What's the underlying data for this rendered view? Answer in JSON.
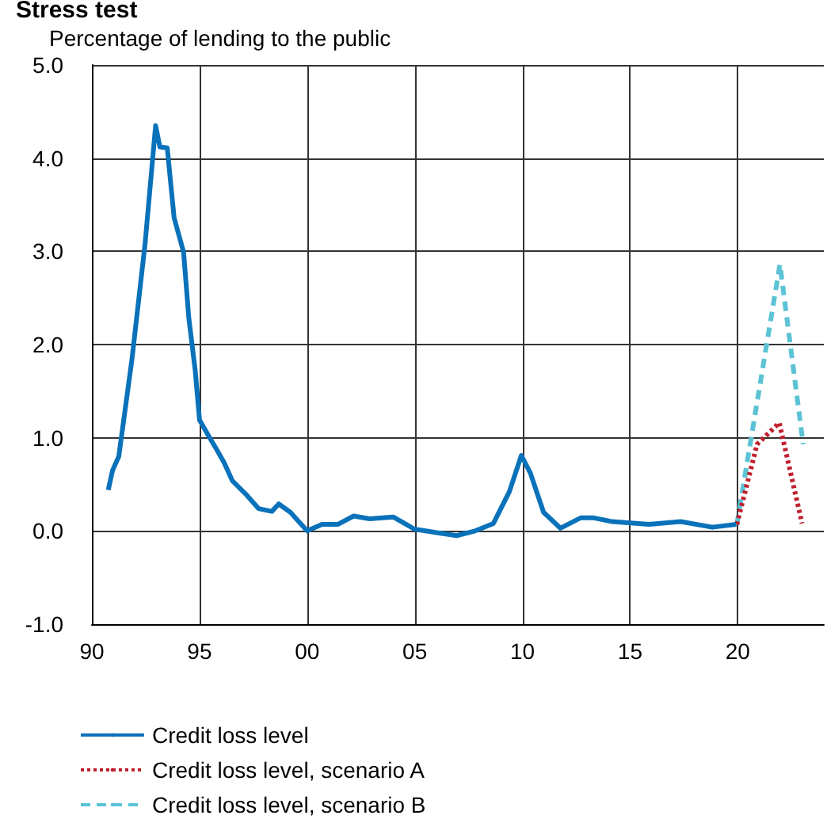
{
  "chart_data": {
    "type": "line",
    "title": "Stress test",
    "subtitle": "Percentage of lending to the public",
    "xlim": [
      1990,
      2024
    ],
    "xticks": [
      {
        "value": 1990,
        "label": "90"
      },
      {
        "value": 1995,
        "label": "95"
      },
      {
        "value": 2000,
        "label": "00"
      },
      {
        "value": 2005,
        "label": "05"
      },
      {
        "value": 2010,
        "label": "10"
      },
      {
        "value": 2015,
        "label": "15"
      },
      {
        "value": 2020,
        "label": "20"
      }
    ],
    "ylim": [
      -1,
      5
    ],
    "yticks": [
      {
        "value": -1,
        "label": "-1.0"
      },
      {
        "value": 0,
        "label": "0.0"
      },
      {
        "value": 1,
        "label": "1.0"
      },
      {
        "value": 2,
        "label": "2.0"
      },
      {
        "value": 3,
        "label": "3.0"
      },
      {
        "value": 4,
        "label": "4.0"
      },
      {
        "value": 5,
        "label": "5.0"
      }
    ],
    "grid": true,
    "legend": "bottom",
    "marker": "none",
    "series": [
      {
        "name": "Credit loss level",
        "color": "#0a72ba",
        "line_style": "solid",
        "x": [
          1990.76,
          1990.96,
          1991.25,
          1991.86,
          1992.47,
          1992.96,
          1993.16,
          1993.5,
          1993.82,
          1994.26,
          1994.5,
          1994.8,
          1995.0,
          1995.42,
          1995.78,
          1996.15,
          1996.52,
          1997.13,
          1997.74,
          1998.36,
          1998.68,
          1999.22,
          2000.0,
          2000.69,
          2001.42,
          2002.16,
          2002.9,
          2004.0,
          2004.98,
          2006.08,
          2006.94,
          2007.8,
          2008.65,
          2009.39,
          2009.95,
          2010.37,
          2010.98,
          2011.76,
          2012.7,
          2013.31,
          2014.17,
          2015.88,
          2017.35,
          2018.82,
          2019.93
        ],
        "values": [
          0.44,
          0.65,
          0.8,
          1.84,
          3.08,
          4.35,
          4.12,
          4.11,
          3.36,
          2.99,
          2.29,
          1.72,
          1.19,
          1.02,
          0.88,
          0.73,
          0.54,
          0.4,
          0.24,
          0.21,
          0.29,
          0.2,
          0.0,
          0.07,
          0.07,
          0.16,
          0.13,
          0.15,
          0.02,
          -0.02,
          -0.05,
          0.0,
          0.08,
          0.42,
          0.81,
          0.62,
          0.2,
          0.03,
          0.14,
          0.14,
          0.1,
          0.07,
          0.1,
          0.04,
          0.07
        ]
      },
      {
        "name": "Credit loss level, scenario A",
        "color": "#c0202e",
        "line_style": "dotted",
        "x": [
          2019.96,
          2020.9,
          2021.93,
          2022.99
        ],
        "values": [
          0.07,
          0.93,
          1.16,
          0.08
        ]
      },
      {
        "name": "Credit loss level, scenario B",
        "color": "#5bc3d5",
        "line_style": "dashed",
        "x": [
          2019.96,
          2021.96,
          2023.04
        ],
        "values": [
          0.07,
          2.86,
          0.93
        ]
      }
    ]
  }
}
